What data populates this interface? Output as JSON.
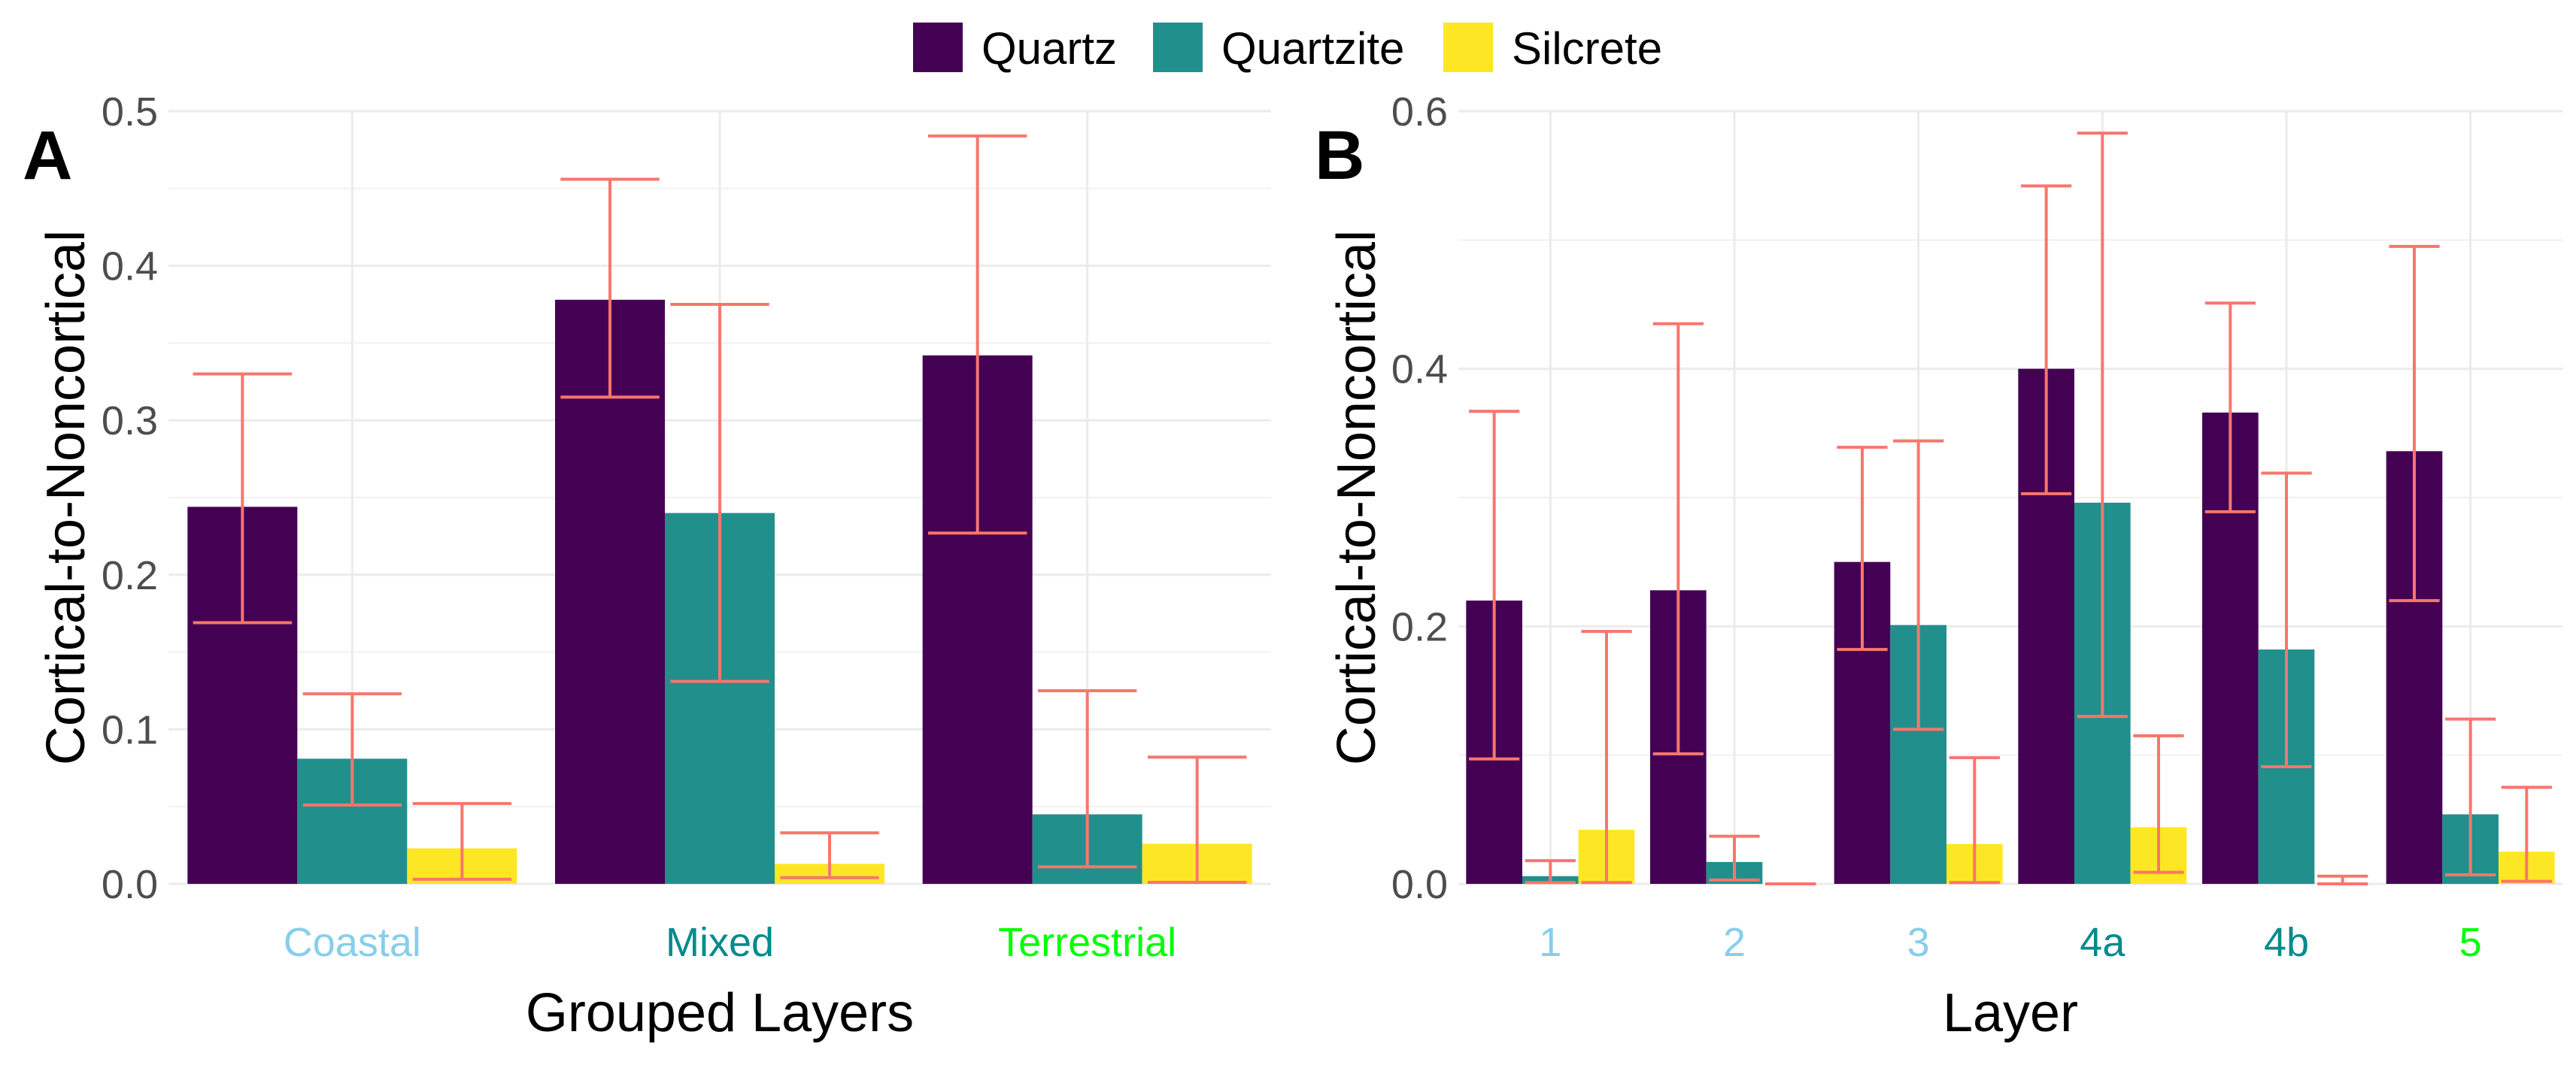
{
  "legend": {
    "items": [
      {
        "label": "Quartz",
        "color": "#440154"
      },
      {
        "label": "Quartzite",
        "color": "#21908C"
      },
      {
        "label": "Silcrete",
        "color": "#FDE725"
      }
    ],
    "position": "top"
  },
  "chart_data": [
    {
      "type": "bar",
      "panel_label": "A",
      "xlabel": "Grouped Layers",
      "ylabel": "Cortical-to-Noncortical",
      "ylim": [
        0,
        0.5
      ],
      "yticks": [
        "0.0",
        "0.1",
        "0.2",
        "0.3",
        "0.4",
        "0.5"
      ],
      "categories": [
        "Coastal",
        "Mixed",
        "Terrestrial"
      ],
      "category_colors": [
        "#87CEEB",
        "#008B8B",
        "#00FF00"
      ],
      "grid": true,
      "error_bar_color": "#F8766D",
      "series": [
        {
          "name": "Quartz",
          "values": [
            0.244,
            0.378,
            0.342
          ],
          "lower": [
            0.169,
            0.315,
            0.227
          ],
          "upper": [
            0.33,
            0.456,
            0.484
          ]
        },
        {
          "name": "Quartzite",
          "values": [
            0.081,
            0.24,
            0.045
          ],
          "lower": [
            0.051,
            0.131,
            0.011
          ],
          "upper": [
            0.123,
            0.375,
            0.125
          ]
        },
        {
          "name": "Silcrete",
          "values": [
            0.023,
            0.013,
            0.026
          ],
          "lower": [
            0.003,
            0.004,
            0.001
          ],
          "upper": [
            0.052,
            0.033,
            0.082
          ]
        }
      ]
    },
    {
      "type": "bar",
      "panel_label": "B",
      "xlabel": "Layer",
      "ylabel": "Cortical-to-Noncortical",
      "ylim": [
        0,
        0.6
      ],
      "yticks": [
        "0.0",
        "0.2",
        "0.4",
        "0.6"
      ],
      "categories": [
        "1",
        "2",
        "3",
        "4a",
        "4b",
        "5"
      ],
      "category_colors": [
        "#87CEEB",
        "#87CEEB",
        "#87CEEB",
        "#008B8B",
        "#008B8B",
        "#00FF00"
      ],
      "grid": true,
      "error_bar_color": "#F8766D",
      "series": [
        {
          "name": "Quartz",
          "values": [
            0.22,
            0.228,
            0.25,
            0.4,
            0.366,
            0.336
          ],
          "lower": [
            0.097,
            0.101,
            0.182,
            0.303,
            0.289,
            0.22
          ],
          "upper": [
            0.367,
            0.435,
            0.339,
            0.542,
            0.451,
            0.495
          ]
        },
        {
          "name": "Quartzite",
          "values": [
            0.006,
            0.017,
            0.201,
            0.296,
            0.182,
            0.054
          ],
          "lower": [
            0.001,
            0.003,
            0.12,
            0.13,
            0.091,
            0.007
          ],
          "upper": [
            0.018,
            0.037,
            0.344,
            0.583,
            0.319,
            0.128
          ]
        },
        {
          "name": "Silcrete",
          "values": [
            0.042,
            0.0,
            0.031,
            0.044,
            0.0,
            0.025
          ],
          "lower": [
            0.001,
            0.0,
            0.001,
            0.009,
            0.0,
            0.002
          ],
          "upper": [
            0.196,
            0.0,
            0.098,
            0.115,
            0.006,
            0.075
          ]
        }
      ]
    }
  ]
}
